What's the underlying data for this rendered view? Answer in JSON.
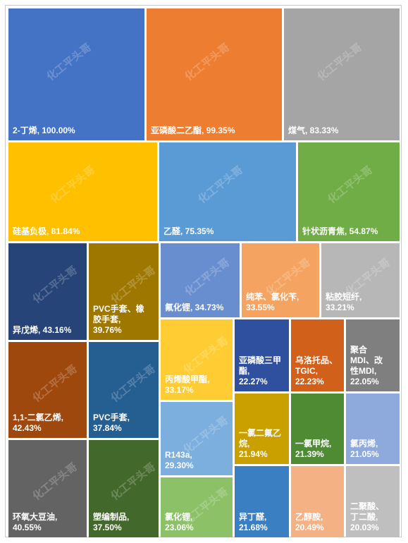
{
  "chart_data": {
    "type": "treemap",
    "unit": "%",
    "items": [
      {
        "name": "2-丁烯",
        "value": 100.0,
        "label": "2-丁烯, 100.00%",
        "color": "#4472C4"
      },
      {
        "name": "亚磷酸二乙酯",
        "value": 99.35,
        "label": "亚磷酸二乙酯, 99.35%",
        "color": "#ED7D31"
      },
      {
        "name": "煤气",
        "value": 83.33,
        "label": "煤气, 83.33%",
        "color": "#A5A5A5"
      },
      {
        "name": "硅基负极",
        "value": 81.84,
        "label": "硅基负极, 81.84%",
        "color": "#FFC000"
      },
      {
        "name": "乙醛",
        "value": 75.35,
        "label": "乙醛, 75.35%",
        "color": "#5B9BD5"
      },
      {
        "name": "针状沥青焦",
        "value": 54.87,
        "label": "针状沥青焦, 54.87%",
        "color": "#70AD47"
      },
      {
        "name": "异戊烯",
        "value": 43.16,
        "label": "异戊烯, 43.16%",
        "color": "#264478"
      },
      {
        "name": "PVC手套、橡胶手套",
        "value": 39.76,
        "label": "PVC手套、橡\n胶手套,\n39.76%",
        "color": "#9E7700"
      },
      {
        "name": "氟化锂",
        "value": 34.73,
        "label": "氟化锂, 34.73%",
        "color": "#698ED0"
      },
      {
        "name": "纯苯、氯化苄",
        "value": 33.55,
        "label": "纯苯、氯化苄,\n33.55%",
        "color": "#F4A460"
      },
      {
        "name": "粘胶短纤",
        "value": 33.21,
        "label": "粘胶短纤,\n33.21%",
        "color": "#B7B7B7"
      },
      {
        "name": "1,1-二氯乙烯",
        "value": 42.43,
        "label": "1,1-二氯乙烯,\n42.43%",
        "color": "#9E480E"
      },
      {
        "name": "PVC手套",
        "value": 37.84,
        "label": "PVC手套,\n37.84%",
        "color": "#255E91"
      },
      {
        "name": "丙烯酸甲酯",
        "value": 33.17,
        "label": "丙烯酸甲酯,\n33.17%",
        "color": "#FFCD33"
      },
      {
        "name": "亚磷酸三甲酯",
        "value": 22.27,
        "label": "亚磷酸三甲\n酯,\n22.27%",
        "color": "#2F4F9F"
      },
      {
        "name": "乌洛托品、TGIC",
        "value": 22.23,
        "label": "乌洛托品、\nTGIC,\n22.23%",
        "color": "#D0601A"
      },
      {
        "name": "聚合MDI、改性MDI",
        "value": 22.05,
        "label": "聚合\nMDI、改\n性MDI,\n22.05%",
        "color": "#7F7F7F"
      },
      {
        "name": "环氧大豆油",
        "value": 40.55,
        "label": "环氧大豆油,\n40.55%",
        "color": "#636363"
      },
      {
        "name": "塑编制品",
        "value": 37.5,
        "label": "塑编制品,\n37.50%",
        "color": "#43682B"
      },
      {
        "name": "R143a",
        "value": 29.3,
        "label": "R143a,\n29.30%",
        "color": "#7CAFDD"
      },
      {
        "name": "一氯二氟乙烷",
        "value": 21.94,
        "label": "一氯二氟乙\n烷,\n21.94%",
        "color": "#C9A000"
      },
      {
        "name": "一氯甲烷",
        "value": 21.39,
        "label": "一氯甲烷,\n21.39%",
        "color": "#4E8B33"
      },
      {
        "name": "氯丙烯",
        "value": 21.05,
        "label": "氯丙烯,\n21.05%",
        "color": "#8EA9DB"
      },
      {
        "name": "氯化锂",
        "value": 23.06,
        "label": "氯化锂,\n23.06%",
        "color": "#8CC168"
      },
      {
        "name": "异丁醛",
        "value": 21.68,
        "label": "异丁醛,\n21.68%",
        "color": "#3A7FC1"
      },
      {
        "name": "乙醇胺",
        "value": 20.49,
        "label": "乙醇胺,\n20.49%",
        "color": "#F4B183"
      },
      {
        "name": "二聚酸、丁二酸",
        "value": 20.03,
        "label": "二聚酸、\n丁二酸,\n20.03%",
        "color": "#BFBFBF"
      }
    ],
    "watermark": "化工平头哥"
  }
}
